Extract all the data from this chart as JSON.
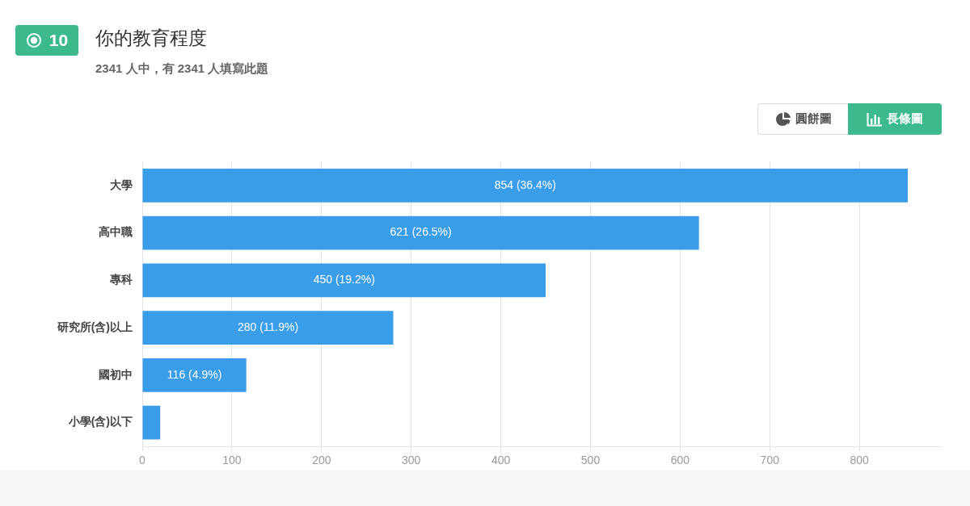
{
  "chart_data": {
    "type": "bar",
    "orientation": "horizontal",
    "title": "你的教育程度",
    "subtitle": "2341 人中，有 2341 人填寫此題",
    "annotations": [
      "10",
      "圓餅圖",
      "長條圖"
    ],
    "categories": [
      "大學",
      "高中職",
      "專科",
      "研究所(含)以上",
      "國初中",
      "小學(含)以下"
    ],
    "values": [
      854,
      621,
      450,
      280,
      116,
      20
    ],
    "value_labels": [
      "854 (36.4%)",
      "621 (26.5%)",
      "450 (19.2%)",
      "280 (11.9%)",
      "116 (4.9%)",
      null
    ],
    "color": "#399dea",
    "xlim": [
      0,
      890
    ],
    "xticks": [
      0,
      100,
      200,
      300,
      400,
      500,
      600,
      700,
      800
    ],
    "grid": "x",
    "legend": false
  }
}
